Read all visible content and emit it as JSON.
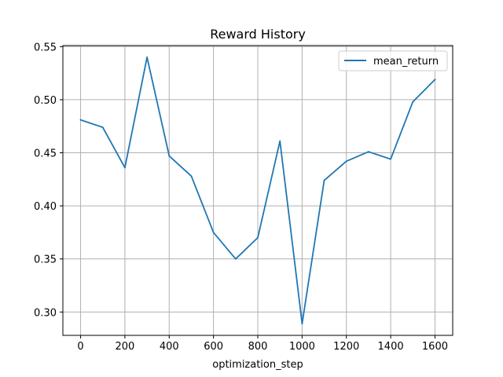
{
  "chart_data": {
    "type": "line",
    "title": "Reward History",
    "xlabel": "optimization_step",
    "ylabel": "",
    "x": [
      0,
      100,
      200,
      300,
      400,
      500,
      600,
      700,
      800,
      900,
      1000,
      1100,
      1200,
      1300,
      1400,
      1500,
      1600
    ],
    "series": [
      {
        "name": "mean_return",
        "color": "#1f77b4",
        "values": [
          0.481,
          0.474,
          0.436,
          0.54,
          0.447,
          0.428,
          0.375,
          0.35,
          0.37,
          0.461,
          0.289,
          0.424,
          0.442,
          0.451,
          0.444,
          0.498,
          0.519
        ]
      }
    ],
    "xlim": [
      -80,
      1680
    ],
    "ylim": [
      0.278,
      0.551
    ],
    "xticks": [
      0,
      200,
      400,
      600,
      800,
      1000,
      1200,
      1400,
      1600
    ],
    "xtick_labels": [
      "0",
      "200",
      "400",
      "600",
      "800",
      "1000",
      "1200",
      "1400",
      "1600"
    ],
    "yticks": [
      0.3,
      0.35,
      0.4,
      0.45,
      0.5,
      0.55
    ],
    "ytick_labels": [
      "0.30",
      "0.35",
      "0.40",
      "0.45",
      "0.50",
      "0.55"
    ],
    "grid": true,
    "legend_position": "top-right"
  }
}
